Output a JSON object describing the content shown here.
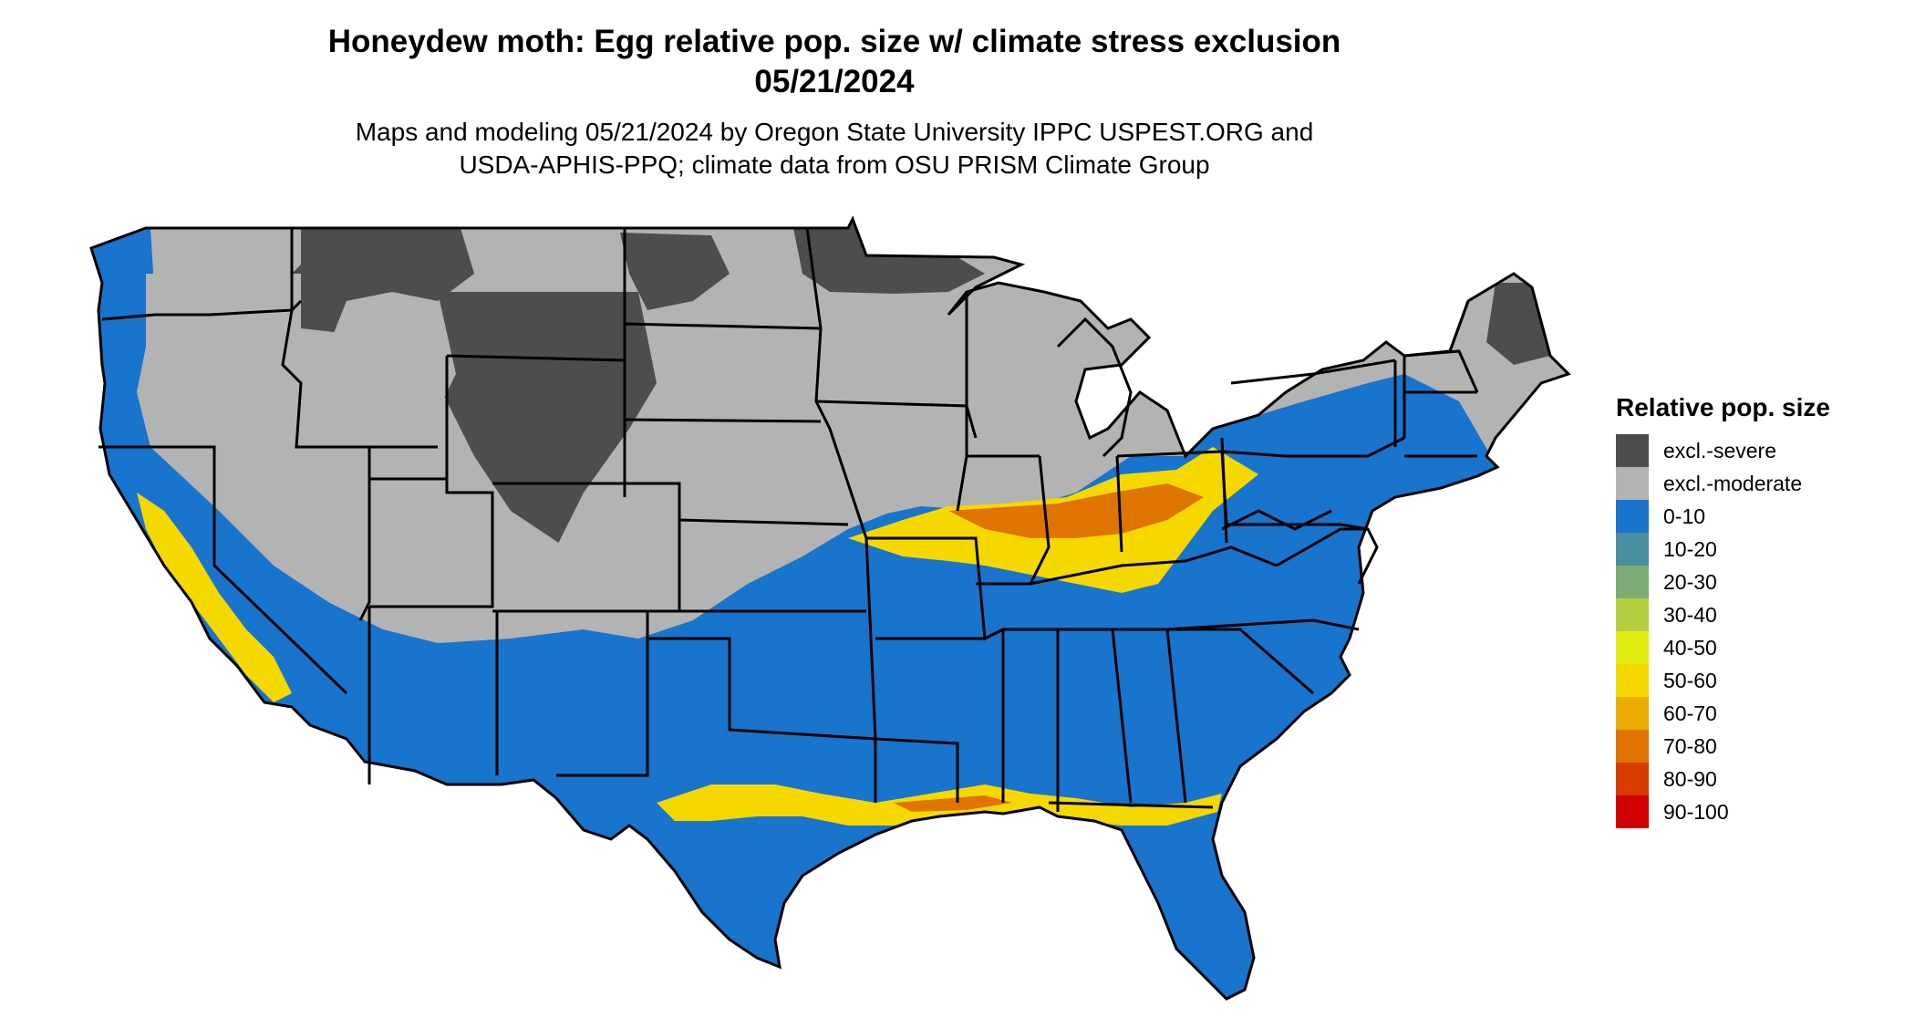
{
  "title": {
    "line1": "Honeydew moth: Egg relative pop. size w/ climate stress exclusion",
    "line2": "05/21/2024"
  },
  "subtitle": {
    "line1": "Maps and modeling 05/21/2024 by Oregon State University IPPC USPEST.ORG and",
    "line2": "USDA-APHIS-PPQ; climate data from OSU PRISM Climate Group"
  },
  "legend": {
    "title": "Relative pop. size",
    "items": [
      {
        "label": "excl.-severe",
        "color": "#4d4d4d"
      },
      {
        "label": "excl.-moderate",
        "color": "#b3b3b3"
      },
      {
        "label": "0-10",
        "color": "#1874cd"
      },
      {
        "label": "10-20",
        "color": "#4a8fa0"
      },
      {
        "label": "20-30",
        "color": "#7cab73"
      },
      {
        "label": "30-40",
        "color": "#b4d041"
      },
      {
        "label": "40-50",
        "color": "#e0ec10"
      },
      {
        "label": "50-60",
        "color": "#f5d800"
      },
      {
        "label": "60-70",
        "color": "#ecab00"
      },
      {
        "label": "70-80",
        "color": "#e07400"
      },
      {
        "label": "80-90",
        "color": "#d83c00"
      },
      {
        "label": "90-100",
        "color": "#d00000"
      }
    ]
  }
}
